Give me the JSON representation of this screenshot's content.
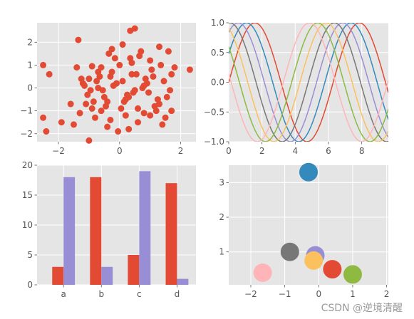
{
  "chart_data": [
    {
      "id": "scatter",
      "type": "scatter",
      "xlim": [
        -2.7,
        2.5
      ],
      "ylim": [
        -2.35,
        2.85
      ],
      "xticks": [
        -2,
        0,
        2
      ],
      "yticks": [
        -2,
        -1,
        0,
        1,
        2
      ],
      "grid": true,
      "color": "#E24A33",
      "x": [
        0.35,
        0.5,
        -1.35,
        0.1,
        -2.5,
        -2.3,
        -0.25,
        0.7,
        1.3,
        1.6,
        2.3,
        -1.4,
        -0.9,
        -0.3,
        0.4,
        1.0,
        1.7,
        -1.6,
        -2.4,
        -2.5,
        -1.0,
        -0.6,
        0.8,
        1.4,
        1.5,
        -0.5,
        0.2,
        0.6,
        -1.1,
        -0.8,
        -0.05,
        0.3,
        1.2,
        -1.3,
        -1.9,
        -0.4,
        0.1,
        0.9,
        1.1,
        -0.2,
        0.45,
        -0.7,
        1.8,
        -1.0,
        -0.15,
        0.65,
        1.35,
        -1.2,
        -0.45,
        0.25,
        0.15,
        -0.95,
        0.55,
        1.05,
        -0.35,
        0.75,
        -0.75,
        1.55,
        -1.5,
        0.05,
        -0.25,
        0.95,
        1.25,
        -0.6,
        0.35,
        -1.05,
        0.85,
        -0.1,
        1.45,
        -0.85,
        0.2,
        1.65,
        -0.55,
        0.6,
        -1.15,
        1.15,
        -0.3,
        0.4,
        -0.65,
        1.7,
        -1.25,
        0.0,
        0.5,
        -0.9,
        1.0,
        -0.4,
        0.3,
        1.3,
        -0.7,
        0.8
      ],
      "y": [
        2.5,
        2.6,
        2.1,
        1.9,
        1.0,
        0.6,
        1.7,
        1.6,
        1.8,
        1.6,
        0.8,
        0.9,
        0.95,
        0.5,
        1.1,
        1.2,
        0.6,
        -0.7,
        -1.9,
        -1.3,
        -2.3,
        -1.0,
        -1.1,
        -1.6,
        -1.3,
        -0.4,
        -0.5,
        -0.9,
        -0.7,
        -1.3,
        -1.9,
        -1.8,
        -1.0,
        -1.1,
        -1.5,
        -1.7,
        0.3,
        0.2,
        0.5,
        0.1,
        -0.2,
        0.0,
        0.9,
        0.4,
        1.3,
        1.4,
        1.0,
        0.2,
        -0.8,
        -0.3,
        -0.6,
        -0.1,
        0.6,
        0.8,
        1.5,
        0.0,
        0.3,
        -0.4,
        -1.6,
        -0.9,
        0.7,
        -0.2,
        -0.5,
        0.9,
        1.3,
        -0.3,
        0.4,
        0.2,
        0.3,
        -0.6,
        -1.2,
        -0.1,
        -0.1,
        -1.5,
        0.1,
        -0.8,
        -1.4,
        0.6,
        0.5,
        -1.0,
        0.4,
        1.0,
        -0.1,
        -0.9,
        -1.2,
        -0.6,
        -0.4,
        -0.7,
        0.7,
        0.1
      ]
    },
    {
      "id": "sinusoids",
      "type": "line",
      "xlim": [
        0,
        9.6
      ],
      "ylim": [
        -1,
        1
      ],
      "xticks": [
        0,
        2,
        4,
        6,
        8
      ],
      "yticks": [
        -1.0,
        -0.5,
        0.0,
        0.5,
        1.0
      ],
      "grid": true,
      "series": [
        {
          "function": "sin(x + 0)",
          "color": "#E24A33"
        },
        {
          "function": "sin(x + 0.5)",
          "color": "#348ABD"
        },
        {
          "function": "sin(x + 1.0)",
          "color": "#988ED5"
        },
        {
          "function": "sin(x + 1.5)",
          "color": "#777777"
        },
        {
          "function": "sin(x + 2.0)",
          "color": "#FBC15E"
        },
        {
          "function": "sin(x + 2.5)",
          "color": "#8EBA42"
        },
        {
          "function": "sin(x + 3.0)",
          "color": "#FFB5B8"
        }
      ]
    },
    {
      "id": "bars",
      "type": "bar",
      "categories": [
        "a",
        "b",
        "c",
        "d"
      ],
      "series": [
        {
          "color": "#E24A33",
          "values": [
            3,
            18,
            5,
            17
          ]
        },
        {
          "color": "#988ED5",
          "values": [
            18,
            3,
            19,
            1
          ]
        }
      ],
      "ylim": [
        0,
        20
      ],
      "yticks": [
        0,
        5,
        10,
        15,
        20
      ],
      "grid": true
    },
    {
      "id": "circles",
      "type": "scatter",
      "xlim": [
        -2.65,
        2.05
      ],
      "ylim": [
        0.05,
        3.5
      ],
      "xticks": [
        -2,
        -1,
        0,
        1,
        2
      ],
      "yticks": [
        1,
        2,
        3
      ],
      "grid": true,
      "points": [
        {
          "x": -0.3,
          "y": 3.3,
          "color": "#348ABD"
        },
        {
          "x": -0.85,
          "y": 1.0,
          "color": "#777777"
        },
        {
          "x": -0.1,
          "y": 0.9,
          "color": "#988ED5"
        },
        {
          "x": -1.65,
          "y": 0.4,
          "color": "#FFB5B8"
        },
        {
          "x": -0.15,
          "y": 0.75,
          "color": "#FBC15E"
        },
        {
          "x": 0.4,
          "y": 0.5,
          "color": "#E24A33"
        },
        {
          "x": 1.0,
          "y": 0.35,
          "color": "#8EBA42"
        }
      ]
    }
  ],
  "watermark": "CSDN @逆境清醒"
}
